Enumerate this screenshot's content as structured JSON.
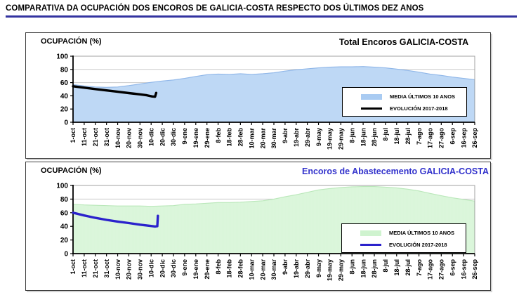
{
  "header": {
    "title": "COMPARATIVA DA OCUPACIÓN DOS ENCOROS DE GALICIA-COSTA RESPECTO DOS ÚLTIMOS DEZ ANOS",
    "underline_color": "#3333A0"
  },
  "chart_data": [
    {
      "type": "area",
      "title": "Total Encoros GALICIA-COSTA",
      "title_color": "#000000",
      "ylabel": "OCUPACIÓN (%)",
      "ylim": [
        0,
        100
      ],
      "yticks": [
        0,
        20,
        40,
        60,
        80,
        100
      ],
      "grid": true,
      "legend_position": "inside-right",
      "categories": [
        "1-oct",
        "11-oct",
        "21-oct",
        "31-oct",
        "10-nov",
        "20-nov",
        "30-nov",
        "10-dic",
        "20-dic",
        "30-dic",
        "9-ene",
        "19-ene",
        "29-ene",
        "8-feb",
        "18-feb",
        "28-feb",
        "10-mar",
        "20-mar",
        "30-mar",
        "9-abr",
        "19-abr",
        "29-abr",
        "9-may",
        "19-may",
        "29-may",
        "8-jun",
        "18-jun",
        "28-jun",
        "8-jul",
        "18-jul",
        "28-jul",
        "7-ago",
        "17-ago",
        "27-ago",
        "6-sep",
        "16-sep",
        "26-sep"
      ],
      "series": [
        {
          "name": "MEDIA ÚLTIMOS 10 ANOS",
          "type": "area",
          "color": "#A9CBF2",
          "edge_color": "#8FB6E8",
          "values": [
            57,
            55,
            53.5,
            53,
            53.5,
            55.5,
            58,
            60.5,
            62.5,
            64,
            66.5,
            69.5,
            72,
            73,
            72.5,
            73.5,
            72.5,
            73.5,
            75,
            77.5,
            79.5,
            81,
            82.5,
            83.5,
            84,
            84,
            84.5,
            83.5,
            82.5,
            80.5,
            78.5,
            76,
            73,
            71,
            68.5,
            66.5,
            64.5
          ]
        },
        {
          "name": "EVOLUCIÓN 2017-2018",
          "type": "line",
          "color": "#000000",
          "points": [
            [
              0,
              54.5
            ],
            [
              1,
              52.3
            ],
            [
              2,
              50.2
            ],
            [
              3,
              48.2
            ],
            [
              4,
              46.2
            ],
            [
              5,
              44.2
            ],
            [
              6,
              42.2
            ],
            [
              6.6,
              40.8
            ],
            [
              7.1,
              39
            ],
            [
              7.35,
              38.6
            ],
            [
              7.45,
              44.5
            ]
          ]
        }
      ]
    },
    {
      "type": "area",
      "title": "Encoros de Abastecemento GALICIA-COSTA",
      "title_color": "#3333CC",
      "ylabel": "OCUPACIÓN (%)",
      "ylim": [
        0,
        100
      ],
      "yticks": [
        0,
        20,
        40,
        60,
        80,
        100
      ],
      "grid": true,
      "legend_position": "inside-right",
      "categories": [
        "1-oct",
        "11-oct",
        "21-oct",
        "31-oct",
        "10-nov",
        "20-nov",
        "30-nov",
        "10-dic",
        "20-dic",
        "30-dic",
        "9-ene",
        "19-ene",
        "29-ene",
        "8-feb",
        "18-feb",
        "28-feb",
        "10-mar",
        "20-mar",
        "30-mar",
        "9-abr",
        "19-abr",
        "29-abr",
        "9-may",
        "19-may",
        "29-may",
        "8-jun",
        "18-jun",
        "28-jun",
        "8-jul",
        "18-jul",
        "28-jul",
        "7-ago",
        "17-ago",
        "27-ago",
        "6-sep",
        "16-sep",
        "26-sep"
      ],
      "series": [
        {
          "name": "MEDIA ÚLTIMOS 10 ANOS",
          "type": "area",
          "color": "#CFF3CF",
          "edge_color": "#B9E7B9",
          "values": [
            72.5,
            71.5,
            71,
            70.5,
            70,
            70,
            70,
            69.5,
            70,
            70.5,
            72.5,
            73,
            74,
            75,
            75,
            75.5,
            76.5,
            77.5,
            80,
            83.5,
            86.5,
            90,
            93.5,
            95.5,
            97,
            98,
            98.5,
            98.5,
            97.5,
            96.5,
            94.5,
            92,
            88.5,
            85,
            82,
            79.5,
            77
          ]
        },
        {
          "name": "EVOLUCIÓN 2017-2018",
          "type": "line",
          "color": "#2B22CC",
          "points": [
            [
              0,
              60
            ],
            [
              1,
              56
            ],
            [
              2,
              52.5
            ],
            [
              3,
              49.5
            ],
            [
              4,
              47
            ],
            [
              5,
              44.8
            ],
            [
              6,
              42.5
            ],
            [
              7,
              40.5
            ],
            [
              7.35,
              39.8
            ],
            [
              7.55,
              40.2
            ],
            [
              7.6,
              55.5
            ]
          ]
        }
      ]
    }
  ]
}
